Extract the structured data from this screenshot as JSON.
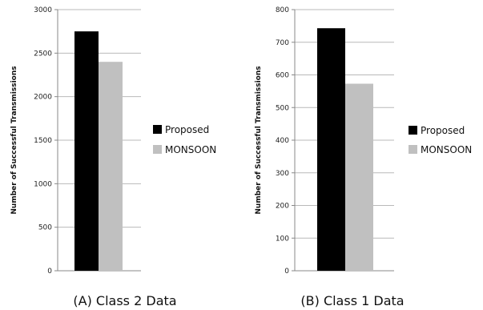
{
  "chart_data": [
    {
      "type": "bar",
      "categories": [
        ""
      ],
      "series": [
        {
          "name": "Proposed",
          "values": [
            2750
          ],
          "color": "#000000"
        },
        {
          "name": "MONSOON",
          "values": [
            2400
          ],
          "color": "#c0c0c0"
        }
      ],
      "ylabel": "Number of Successful Transmissions",
      "ylim": [
        0,
        3000
      ],
      "yticks": [
        "0",
        "500",
        "1000",
        "1500",
        "2000",
        "2500",
        "3000"
      ],
      "caption": "(A) Class 2 Data",
      "grid": true,
      "legend": "right"
    },
    {
      "type": "bar",
      "categories": [
        ""
      ],
      "series": [
        {
          "name": "Proposed",
          "values": [
            743
          ],
          "color": "#000000"
        },
        {
          "name": "MONSOON",
          "values": [
            573
          ],
          "color": "#c0c0c0"
        }
      ],
      "ylabel": "Number of Successful Transmissions",
      "ylim": [
        0,
        800
      ],
      "yticks": [
        "0",
        "100",
        "200",
        "300",
        "400",
        "500",
        "600",
        "700",
        "800"
      ],
      "caption": "(B) Class 1 Data",
      "grid": true,
      "legend": "right"
    }
  ]
}
